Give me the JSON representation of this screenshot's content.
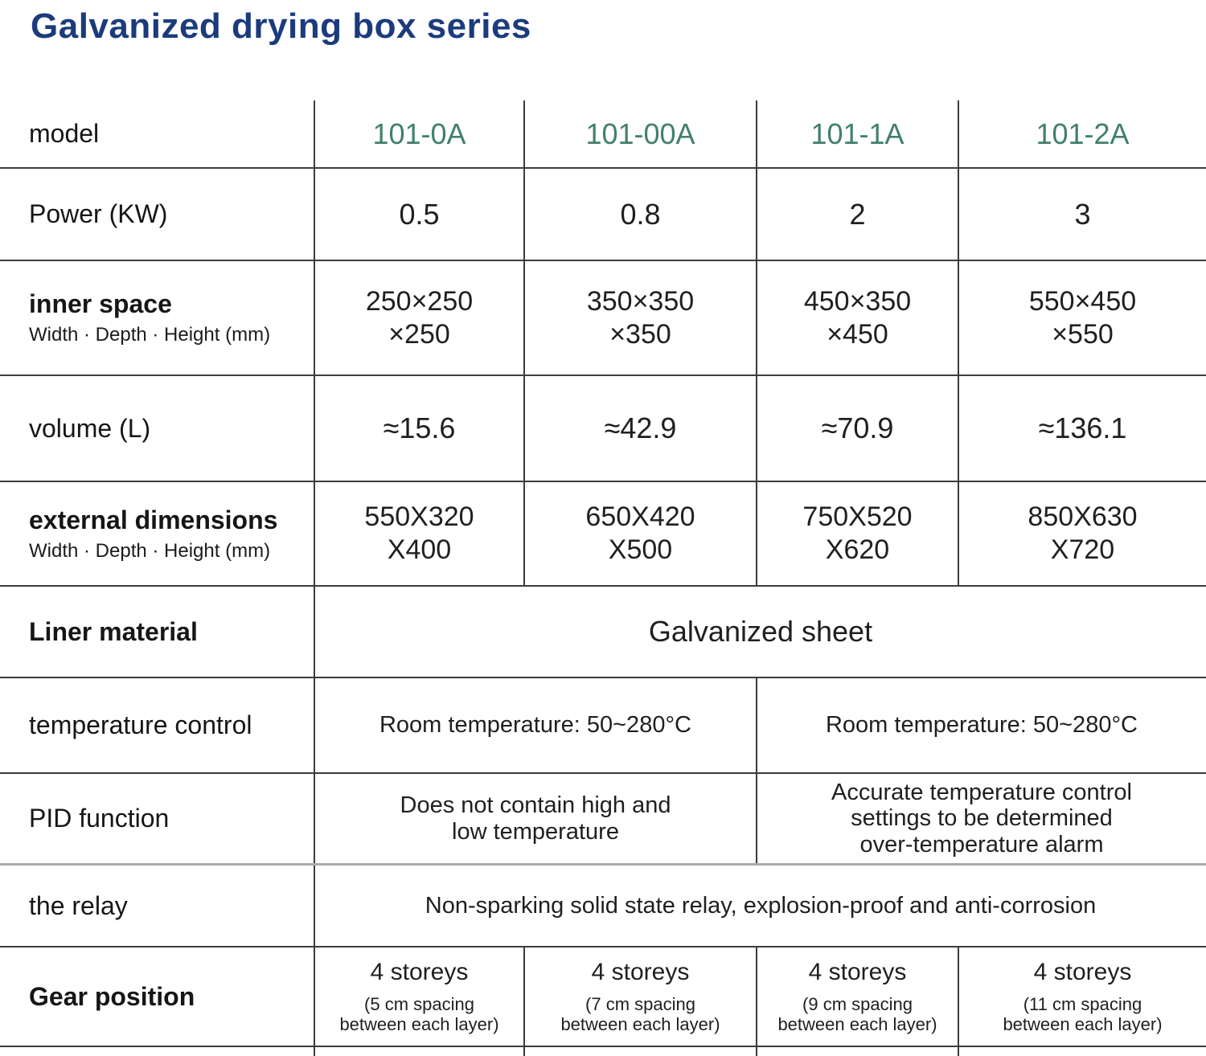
{
  "page": {
    "title": "Galvanized drying box series"
  },
  "table": {
    "columns": [
      "101-0A",
      "101-00A",
      "101-1A",
      "101-2A"
    ],
    "rows": {
      "model": {
        "label": "model"
      },
      "power": {
        "label": "Power (KW)",
        "values": [
          "0.5",
          "0.8",
          "2",
          "3"
        ]
      },
      "inner_space": {
        "label": "inner space",
        "sublabel": "Width · Depth · Height (mm)",
        "values": [
          "250×250\n×250",
          "350×350\n×350",
          "450×350\n×450",
          "550×450\n×550"
        ]
      },
      "volume": {
        "label": "volume (L)",
        "values": [
          "≈15.6",
          "≈42.9",
          "≈70.9",
          "≈136.1"
        ]
      },
      "external_dimensions": {
        "label": "external dimensions",
        "sublabel": "Width · Depth · Height (mm)",
        "values": [
          "550X320\nX400",
          "650X420\nX500",
          "750X520\nX620",
          "850X630\nX720"
        ]
      },
      "liner_material": {
        "label": "Liner material",
        "value": "Galvanized sheet"
      },
      "temperature_control": {
        "label": "temperature control",
        "values": [
          "Room temperature: 50~280°C",
          "Room temperature: 50~280°C"
        ]
      },
      "pid_function": {
        "label": "PID function",
        "values": [
          "Does not contain high and\nlow temperature",
          "Accurate temperature control\nsettings to be determined\nover-temperature alarm"
        ]
      },
      "relay": {
        "label": "the relay",
        "value": "Non-sparking solid state relay, explosion-proof and anti-corrosion"
      },
      "gear_position": {
        "label": "Gear position",
        "values": [
          {
            "storeys": "4 storeys",
            "note": "(5 cm spacing\nbetween each layer)"
          },
          {
            "storeys": "4 storeys",
            "note": "(7 cm spacing\nbetween each layer)"
          },
          {
            "storeys": "4 storeys",
            "note": "(9 cm spacing\nbetween each layer)"
          },
          {
            "storeys": "4 storeys",
            "note": "(11 cm spacing\nbetween each layer)"
          }
        ]
      }
    }
  },
  "colors": {
    "title-color": "#1b3b7c",
    "model-color": "#41806a",
    "text-color": "#1f1f1f",
    "border-color": "#3c3c3c"
  }
}
